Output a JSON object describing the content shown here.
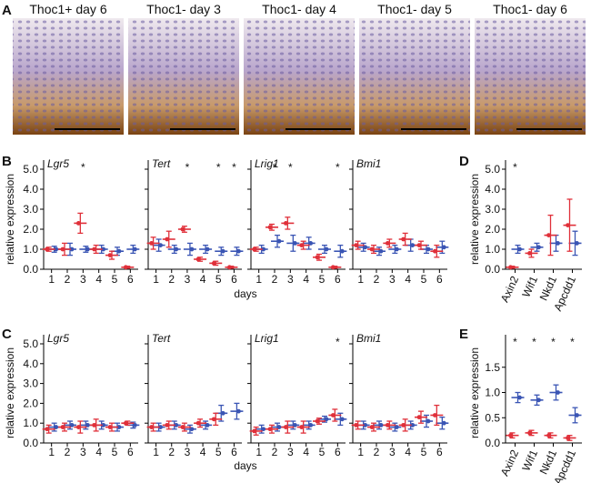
{
  "panel_a": {
    "label": "A",
    "titles": [
      "Thoc1+ day 6",
      "Thoc1- day 3",
      "Thoc1- day 4",
      "Thoc1- day 5",
      "Thoc1- day 6"
    ]
  },
  "panel_b": {
    "label": "B",
    "y_label": "relative expression",
    "x_label": "days",
    "ylim": [
      0,
      5
    ],
    "yticks": [
      {
        "value": 0,
        "label": "0.0"
      },
      {
        "value": 1,
        "label": "1.0"
      },
      {
        "value": 2,
        "label": "2.0"
      },
      {
        "value": 3,
        "label": "3.0"
      },
      {
        "value": 4,
        "label": "4.0"
      },
      {
        "value": 5,
        "label": "5.0"
      }
    ],
    "categories": [
      "1",
      "2",
      "3",
      "4",
      "5",
      "6"
    ],
    "plots": [
      {
        "gene": "Lgr5",
        "series": [
          {
            "color": "#3a55b4",
            "values": [
              1.0,
              1.0,
              1.0,
              1.0,
              0.9,
              1.0
            ],
            "errors": [
              0.15,
              0.3,
              0.15,
              0.2,
              0.2,
              0.2
            ]
          },
          {
            "color": "#e0303a",
            "values": [
              1.0,
              1.0,
              2.3,
              1.0,
              0.7,
              0.1
            ],
            "errors": [
              0.1,
              0.3,
              0.5,
              0.2,
              0.2,
              0.05
            ]
          }
        ],
        "stars": [
          null,
          null,
          "*",
          null,
          null,
          null
        ]
      },
      {
        "gene": "Tert",
        "series": [
          {
            "color": "#3a55b4",
            "values": [
              1.2,
              1.0,
              1.0,
              1.0,
              0.9,
              0.9
            ],
            "errors": [
              0.3,
              0.2,
              0.3,
              0.2,
              0.2,
              0.2
            ]
          },
          {
            "color": "#e0303a",
            "values": [
              1.3,
              1.5,
              2.0,
              0.5,
              0.3,
              0.1
            ],
            "errors": [
              0.3,
              0.4,
              0.15,
              0.1,
              0.1,
              0.05
            ]
          }
        ],
        "stars": [
          null,
          null,
          "*",
          null,
          "*",
          "*"
        ]
      },
      {
        "gene": "Lrig1",
        "series": [
          {
            "color": "#3a55b4",
            "values": [
              1.0,
              1.4,
              1.3,
              1.3,
              1.0,
              0.9
            ],
            "errors": [
              0.2,
              0.3,
              0.4,
              0.3,
              0.2,
              0.3
            ]
          },
          {
            "color": "#e0303a",
            "values": [
              1.0,
              2.1,
              2.3,
              1.2,
              0.6,
              0.1
            ],
            "errors": [
              0.1,
              0.15,
              0.3,
              0.2,
              0.15,
              0.05
            ]
          }
        ],
        "stars": [
          null,
          "*",
          "*",
          null,
          null,
          "*"
        ]
      },
      {
        "gene": "Bmi1",
        "series": [
          {
            "color": "#3a55b4",
            "values": [
              1.1,
              0.9,
              1.0,
              1.2,
              1.0,
              1.1
            ],
            "errors": [
              0.2,
              0.2,
              0.2,
              0.3,
              0.2,
              0.3
            ]
          },
          {
            "color": "#e0303a",
            "values": [
              1.2,
              1.0,
              1.3,
              1.5,
              1.2,
              0.9
            ],
            "errors": [
              0.2,
              0.2,
              0.2,
              0.3,
              0.2,
              0.3
            ]
          }
        ],
        "stars": [
          null,
          null,
          null,
          null,
          null,
          null
        ]
      }
    ]
  },
  "panel_d": {
    "label": "D",
    "y_label": "relative expression",
    "ylim": [
      0,
      5
    ],
    "yticks": [
      {
        "value": 0,
        "label": "0.0"
      },
      {
        "value": 1,
        "label": "1.0"
      },
      {
        "value": 2,
        "label": "2.0"
      },
      {
        "value": 3,
        "label": "3.0"
      },
      {
        "value": 4,
        "label": "4.0"
      },
      {
        "value": 5,
        "label": "5.0"
      }
    ],
    "categories": [
      "Axin2",
      "Wif1",
      "Nkd1",
      "Apcdd1"
    ],
    "series": [
      {
        "color": "#3a55b4",
        "values": [
          1.0,
          1.1,
          1.3,
          1.3
        ],
        "errors": [
          0.2,
          0.2,
          0.4,
          0.6
        ]
      },
      {
        "color": "#e0303a",
        "values": [
          0.1,
          0.8,
          1.7,
          2.2
        ],
        "errors": [
          0.05,
          0.2,
          1.0,
          1.3
        ]
      }
    ],
    "stars": [
      "*",
      null,
      null,
      null
    ]
  },
  "panel_c": {
    "label": "C",
    "y_label": "relative expression",
    "x_label": "days",
    "ylim": [
      0,
      5
    ],
    "yticks": [
      {
        "value": 0,
        "label": "0.0"
      },
      {
        "value": 1,
        "label": "1.0"
      },
      {
        "value": 2,
        "label": "2.0"
      },
      {
        "value": 3,
        "label": "3.0"
      },
      {
        "value": 4,
        "label": "4.0"
      },
      {
        "value": 5,
        "label": "5.0"
      }
    ],
    "categories": [
      "1",
      "2",
      "3",
      "4",
      "5",
      "6"
    ],
    "plots": [
      {
        "gene": "Lgr5",
        "series": [
          {
            "color": "#3a55b4",
            "values": [
              0.8,
              0.9,
              0.9,
              0.9,
              0.8,
              0.9
            ],
            "errors": [
              0.2,
              0.2,
              0.2,
              0.2,
              0.2,
              0.15
            ]
          },
          {
            "color": "#e0303a",
            "values": [
              0.7,
              0.8,
              0.8,
              0.9,
              0.8,
              1.0
            ],
            "errors": [
              0.2,
              0.2,
              0.3,
              0.3,
              0.2,
              0.1
            ]
          }
        ],
        "stars": [
          null,
          null,
          null,
          null,
          null,
          null
        ]
      },
      {
        "gene": "Tert",
        "series": [
          {
            "color": "#3a55b4",
            "values": [
              0.8,
              0.9,
              0.7,
              0.9,
              1.5,
              1.6
            ],
            "errors": [
              0.2,
              0.2,
              0.2,
              0.2,
              0.4,
              0.4
            ]
          },
          {
            "color": "#e0303a",
            "values": [
              0.8,
              0.9,
              0.8,
              1.0,
              1.2,
              null
            ],
            "errors": [
              0.2,
              0.2,
              0.2,
              0.2,
              0.3,
              null
            ]
          }
        ],
        "stars": [
          null,
          null,
          null,
          null,
          null,
          null
        ]
      },
      {
        "gene": "Lrig1",
        "series": [
          {
            "color": "#3a55b4",
            "values": [
              0.7,
              0.8,
              0.9,
              0.9,
              1.2,
              1.2
            ],
            "errors": [
              0.2,
              0.2,
              0.2,
              0.2,
              0.15,
              0.3
            ]
          },
          {
            "color": "#e0303a",
            "values": [
              0.6,
              0.7,
              0.8,
              0.8,
              1.1,
              1.4
            ],
            "errors": [
              0.2,
              0.2,
              0.3,
              0.3,
              0.15,
              0.3
            ]
          }
        ],
        "stars": [
          null,
          null,
          null,
          null,
          null,
          "*"
        ]
      },
      {
        "gene": "Bmi1",
        "series": [
          {
            "color": "#3a55b4",
            "values": [
              0.9,
              0.9,
              0.8,
              0.9,
              1.1,
              1.0
            ],
            "errors": [
              0.2,
              0.2,
              0.2,
              0.2,
              0.3,
              0.3
            ]
          },
          {
            "color": "#e0303a",
            "values": [
              0.9,
              0.8,
              0.9,
              0.9,
              1.3,
              1.4
            ],
            "errors": [
              0.2,
              0.2,
              0.2,
              0.3,
              0.3,
              0.5
            ]
          }
        ],
        "stars": [
          null,
          null,
          null,
          null,
          null,
          null
        ]
      }
    ]
  },
  "panel_e": {
    "label": "E",
    "y_label": "relative expression",
    "ylim": [
      0,
      1.5
    ],
    "yticks": [
      {
        "value": 0,
        "label": "0.0"
      },
      {
        "value": 0.5,
        "label": "0.5"
      },
      {
        "value": 1,
        "label": "1.0"
      },
      {
        "value": 1.5,
        "label": "1.5"
      }
    ],
    "categories": [
      "Axin2",
      "Wif1",
      "Nkd1",
      "Apcdd1"
    ],
    "series": [
      {
        "color": "#3a55b4",
        "values": [
          0.9,
          0.85,
          1.0,
          0.55
        ],
        "errors": [
          0.1,
          0.1,
          0.15,
          0.15
        ]
      },
      {
        "color": "#e0303a",
        "values": [
          0.15,
          0.2,
          0.15,
          0.1
        ],
        "errors": [
          0.05,
          0.05,
          0.05,
          0.05
        ]
      }
    ],
    "stars": [
      "*",
      "*",
      "*",
      "*"
    ]
  }
}
